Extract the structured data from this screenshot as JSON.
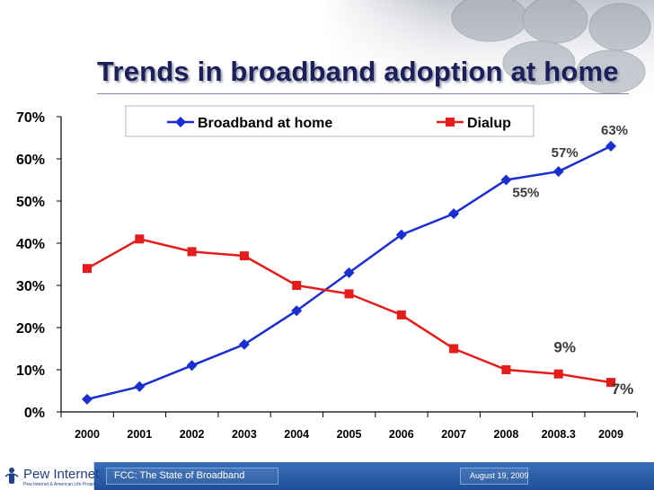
{
  "chart_data": {
    "type": "line",
    "title": "Trends in broadband adoption at home",
    "categories": [
      "2000",
      "2001",
      "2002",
      "2003",
      "2004",
      "2005",
      "2006",
      "2007",
      "2008",
      "2008.3",
      "2009"
    ],
    "series": [
      {
        "name": "Broadband at home",
        "color": "#1a2fd0",
        "marker": "diamond",
        "values": [
          3,
          6,
          11,
          16,
          24,
          33,
          42,
          47,
          55,
          57,
          63
        ]
      },
      {
        "name": "Dialup",
        "color": "#e51c1c",
        "marker": "square",
        "values": [
          34,
          41,
          38,
          37,
          30,
          28,
          23,
          15,
          10,
          9,
          7
        ]
      }
    ],
    "ylim": [
      0,
      70
    ],
    "yticks": [
      0,
      10,
      20,
      30,
      40,
      50,
      60,
      70
    ],
    "ytick_labels": [
      "0%",
      "10%",
      "20%",
      "30%",
      "40%",
      "50%",
      "60%",
      "70%"
    ],
    "xlabel": "",
    "ylabel": "",
    "grid": false,
    "legend_position": "top-center",
    "annotations": [
      {
        "text": "63%",
        "series": 0,
        "index": 10
      },
      {
        "text": "57%",
        "series": 0,
        "index": 9
      },
      {
        "text": "55%",
        "series": 0,
        "index": 8
      },
      {
        "text": "9%",
        "series": 1,
        "index": 9
      },
      {
        "text": "7%",
        "series": 1,
        "index": 10
      }
    ]
  },
  "footer": {
    "logo_text": "Pew Internet",
    "logo_sub": "Pew Internet & American Life Project",
    "presentation": "FCC: The State of Broadband",
    "date": "August 19, 2009"
  },
  "colors": {
    "accent": "#1d1f5a",
    "footer": "#2a5ba8"
  }
}
